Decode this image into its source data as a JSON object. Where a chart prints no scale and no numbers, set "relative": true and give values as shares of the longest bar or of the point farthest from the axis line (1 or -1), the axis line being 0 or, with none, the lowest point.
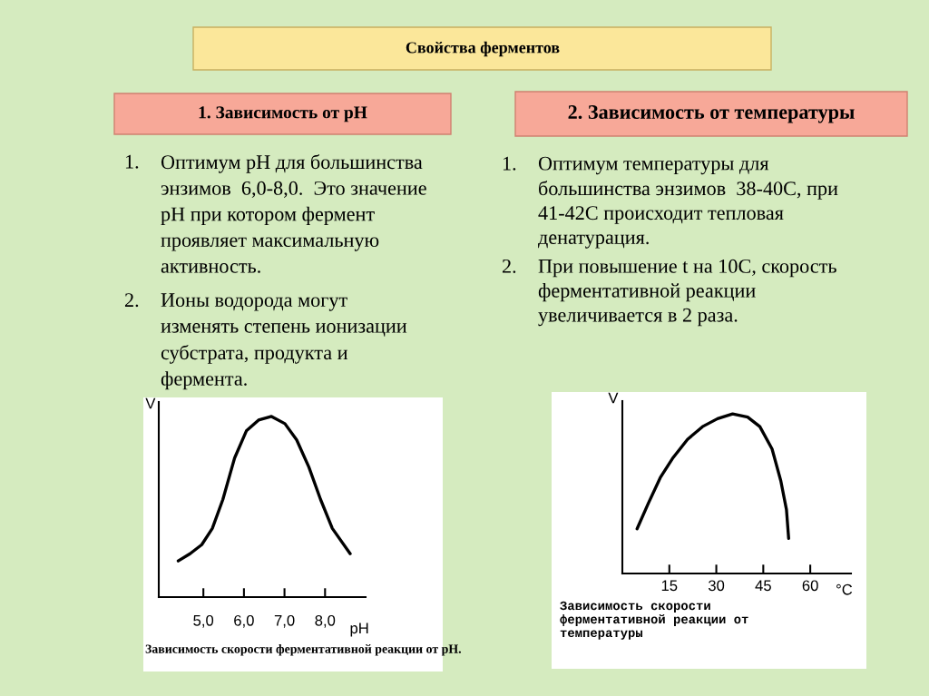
{
  "chart_data": [
    {
      "type": "other",
      "title": "Свойства ферментов",
      "annotations": [
        "1. Зависимость от рН",
        "1. Оптимум рН для большинства\nэнзимов  6,0-8,0.  Это значение\nрН при котором фермент\nпроявляет максимальную\nактивность.",
        "2. Ионы водорода могут\nизменять степень ионизации\nсубстрата, продукта и\nфермента.",
        "2. Зависимость от температуры",
        "1. Оптимум температуры для\nбольшинства энзимов  38-40С, при\n41-42С происходит тепловая\nденатурация.",
        "2. При повышение t на 10С, скорость\nферментативной реакции\nувеличивается в 2 раза."
      ]
    },
    {
      "type": "line",
      "relative": true,
      "xlabel": "pH",
      "ylabel": "V",
      "tick_labels": "x",
      "grid": false,
      "color": "#000000",
      "xlim": [
        3.9,
        9.0
      ],
      "xticks": [
        {
          "value": 5,
          "label": "5,0"
        },
        {
          "value": 6,
          "label": "6,0"
        },
        {
          "value": 7,
          "label": "7,0"
        },
        {
          "value": 8,
          "label": "8,0"
        }
      ],
      "x": [
        4.38,
        4.67,
        4.96,
        5.22,
        5.48,
        5.77,
        6.06,
        6.36,
        6.68,
        7.01,
        7.3,
        7.6,
        7.89,
        8.18,
        8.62
      ],
      "values": [
        0.2,
        0.24,
        0.29,
        0.38,
        0.54,
        0.77,
        0.92,
        0.98,
        1.0,
        0.96,
        0.87,
        0.72,
        0.54,
        0.38,
        0.24
      ],
      "annotations": [
        "Зависимость скорости ферментативной реакции от pH."
      ]
    },
    {
      "type": "line",
      "relative": true,
      "xlabel": "°C",
      "ylabel": "V",
      "tick_labels": "x",
      "grid": false,
      "color": "#000000",
      "xlim": [
        0,
        73
      ],
      "xticks": [
        15,
        30,
        45,
        60
      ],
      "x": [
        4.7,
        8.3,
        12.1,
        16.0,
        20.8,
        25.6,
        30.4,
        35.2,
        40.0,
        43.9,
        47.8,
        50.6,
        52.4,
        53.1
      ],
      "values": [
        0.28,
        0.44,
        0.6,
        0.72,
        0.84,
        0.92,
        0.97,
        1.0,
        0.98,
        0.92,
        0.78,
        0.58,
        0.4,
        0.22
      ],
      "annotations": [
        "Зависимость скорости\nферментативной реакции от\nтемпературы"
      ]
    }
  ]
}
